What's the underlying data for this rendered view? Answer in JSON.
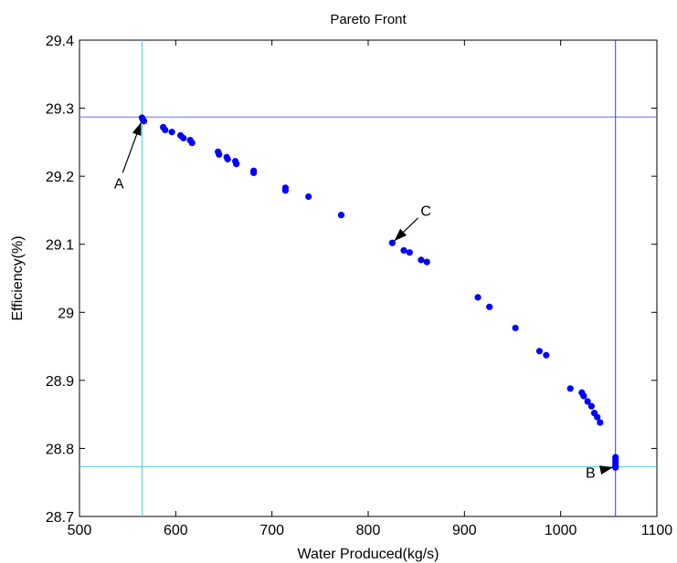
{
  "chart_data": {
    "type": "scatter",
    "title": "Pareto Front",
    "xlabel": "Water Produced(kg/s)",
    "ylabel": "Efficiency(%)",
    "xlim": [
      500,
      1100
    ],
    "ylim": [
      28.7,
      29.4
    ],
    "xticks": [
      "500",
      "600",
      "700",
      "800",
      "900",
      "1000",
      "1100"
    ],
    "yticks": [
      "28.7",
      "28.8",
      "28.9",
      "29",
      "29.1",
      "29.2",
      "29.3",
      "29.4"
    ],
    "grid": false,
    "point_color": "#0000ff",
    "points": [
      [
        565,
        29.286
      ],
      [
        566,
        29.283
      ],
      [
        567,
        29.281
      ],
      [
        587,
        29.272
      ],
      [
        589,
        29.268
      ],
      [
        596,
        29.265
      ],
      [
        605,
        29.26
      ],
      [
        608,
        29.256
      ],
      [
        615,
        29.253
      ],
      [
        617,
        29.249
      ],
      [
        644,
        29.236
      ],
      [
        645,
        29.232
      ],
      [
        653,
        29.228
      ],
      [
        654,
        29.225
      ],
      [
        662,
        29.222
      ],
      [
        663,
        29.218
      ],
      [
        681,
        29.208
      ],
      [
        681,
        29.205
      ],
      [
        714,
        29.183
      ],
      [
        714,
        29.179
      ],
      [
        738,
        29.17
      ],
      [
        772,
        29.143
      ],
      [
        825,
        29.102
      ],
      [
        837,
        29.091
      ],
      [
        843,
        29.088
      ],
      [
        855,
        29.077
      ],
      [
        861,
        29.074
      ],
      [
        914,
        29.022
      ],
      [
        926,
        29.008
      ],
      [
        953,
        28.977
      ],
      [
        978,
        28.943
      ],
      [
        985,
        28.937
      ],
      [
        1010,
        28.888
      ],
      [
        1022,
        28.882
      ],
      [
        1024,
        28.877
      ],
      [
        1028,
        28.869
      ],
      [
        1032,
        28.862
      ],
      [
        1035,
        28.852
      ],
      [
        1038,
        28.846
      ],
      [
        1041,
        28.838
      ],
      [
        1057,
        28.787
      ],
      [
        1057,
        28.783
      ],
      [
        1057,
        28.779
      ],
      [
        1057,
        28.775
      ],
      [
        1057,
        28.772
      ]
    ],
    "reference_lines": [
      {
        "orientation": "vertical",
        "value": 565,
        "color": "#4fd0d0"
      },
      {
        "orientation": "horizontal",
        "value": 29.287,
        "color": "#6a6aff"
      },
      {
        "orientation": "vertical",
        "value": 1057,
        "color": "#3535ff"
      },
      {
        "orientation": "horizontal",
        "value": 28.773,
        "color": "#4fd0d0"
      }
    ],
    "annotations": [
      {
        "text": "A",
        "point": [
          565,
          29.283
        ],
        "label_at": [
          541,
          29.19
        ]
      },
      {
        "text": "B",
        "point": [
          1057,
          28.773
        ],
        "label_at": [
          1031,
          28.765
        ]
      },
      {
        "text": "C",
        "point": [
          825,
          29.102
        ],
        "label_at": [
          860,
          29.15
        ]
      }
    ]
  }
}
